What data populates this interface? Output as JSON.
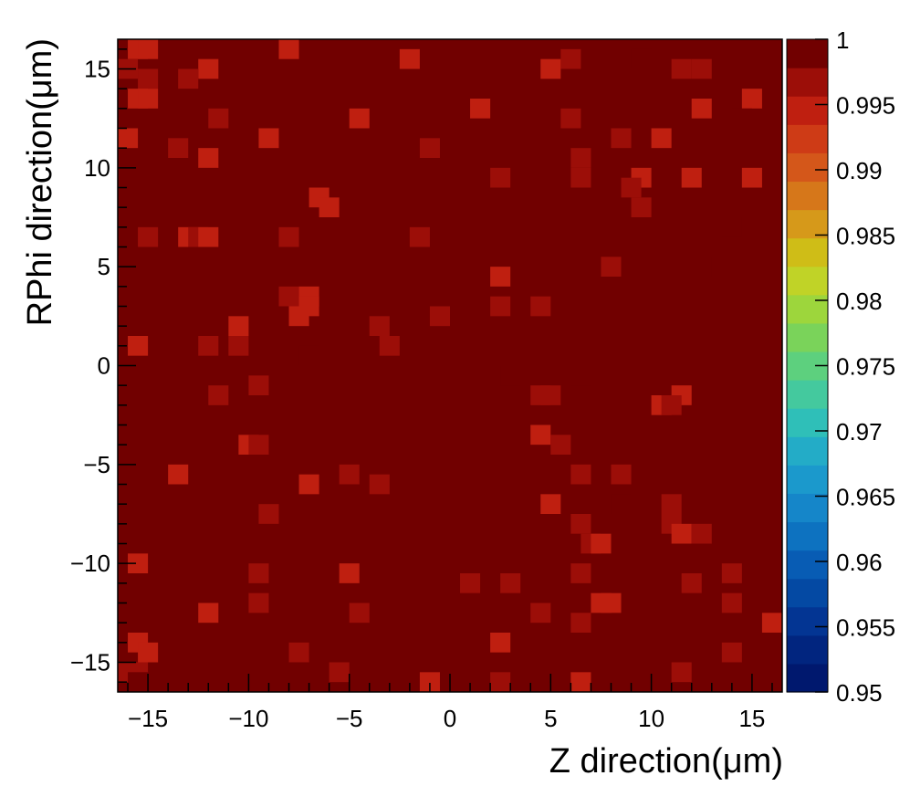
{
  "chart_data": {
    "type": "heatmap",
    "title": "",
    "xlabel": "Z direction(μm)",
    "ylabel": "RPhi direction(μm)",
    "xlim": [
      -16.5,
      16.5
    ],
    "ylim": [
      -16.5,
      16.5
    ],
    "x_ticks": [
      -15,
      -10,
      -5,
      0,
      5,
      10,
      15
    ],
    "x_tick_labels": [
      "−15",
      "−10",
      "−5",
      "0",
      "5",
      "10",
      "15"
    ],
    "y_ticks": [
      -15,
      -10,
      -5,
      0,
      5,
      10,
      15
    ],
    "y_tick_labels": [
      "−15",
      "−10",
      "−5",
      "0",
      "5",
      "10",
      "15"
    ],
    "colorbar": {
      "range": [
        0.95,
        1
      ],
      "ticks": [
        0.95,
        0.955,
        0.96,
        0.965,
        0.97,
        0.975,
        0.98,
        0.985,
        0.99,
        0.995,
        1
      ],
      "tick_labels": [
        "0.95",
        "0.955",
        "0.96",
        "0.965",
        "0.97",
        "0.975",
        "0.98",
        "0.985",
        "0.99",
        "0.995",
        "1"
      ],
      "palette": [
        "#00186e",
        "#01257f",
        "#033593",
        "#0449a3",
        "#085cb4",
        "#0d72c0",
        "#1586c9",
        "#1b99cc",
        "#23acc7",
        "#2fbfb8",
        "#44c99e",
        "#5dd07e",
        "#7ad35a",
        "#9dd63c",
        "#c0d327",
        "#cfbd17",
        "#d6991a",
        "#d6771a",
        "#d4571a",
        "#ce3b16",
        "#bf1f10",
        "#9c0e08",
        "#710000"
      ]
    },
    "grid": false,
    "bins": {
      "nx": 33,
      "ny": 33,
      "bin_width": 1
    },
    "default_value": 1,
    "cells": [
      {
        "x": -15.5,
        "y": 16,
        "v": 0.9945
      },
      {
        "x": -15,
        "y": 16,
        "v": 0.9945
      },
      {
        "x": -8,
        "y": 16,
        "v": 0.9945
      },
      {
        "x": -2,
        "y": 15.5,
        "v": 0.9945
      },
      {
        "x": 6,
        "y": 15.5,
        "v": 0.9965
      },
      {
        "x": 9.5,
        "y": 15.5,
        "v": 0.998
      },
      {
        "x": -16,
        "y": 15,
        "v": 0.9965
      },
      {
        "x": -12,
        "y": 15,
        "v": 0.9945
      },
      {
        "x": 5,
        "y": 15,
        "v": 0.9945
      },
      {
        "x": 11.5,
        "y": 15,
        "v": 0.997
      },
      {
        "x": 12.5,
        "y": 15,
        "v": 0.997
      },
      {
        "x": -15,
        "y": 14.5,
        "v": 0.9965
      },
      {
        "x": -13,
        "y": 14.5,
        "v": 0.9965
      },
      {
        "x": -15.5,
        "y": 13.5,
        "v": 0.9945
      },
      {
        "x": -15,
        "y": 13.5,
        "v": 0.9945
      },
      {
        "x": 15,
        "y": 13.5,
        "v": 0.9945
      },
      {
        "x": 1.5,
        "y": 13,
        "v": 0.9945
      },
      {
        "x": 12.5,
        "y": 13,
        "v": 0.9945
      },
      {
        "x": -11.5,
        "y": 12.5,
        "v": 0.997
      },
      {
        "x": -4.5,
        "y": 12.5,
        "v": 0.9945
      },
      {
        "x": 6,
        "y": 12.5,
        "v": 0.997
      },
      {
        "x": 14.5,
        "y": 12.5,
        "v": 0.998
      },
      {
        "x": -16,
        "y": 11.5,
        "v": 0.9945
      },
      {
        "x": -9,
        "y": 11.5,
        "v": 0.9945
      },
      {
        "x": 8.5,
        "y": 11.5,
        "v": 0.997
      },
      {
        "x": 10.5,
        "y": 11.5,
        "v": 0.9945
      },
      {
        "x": -13.5,
        "y": 11,
        "v": 0.997
      },
      {
        "x": -1,
        "y": 11,
        "v": 0.997
      },
      {
        "x": -12,
        "y": 10.5,
        "v": 0.9945
      },
      {
        "x": 6.5,
        "y": 10.5,
        "v": 0.997
      },
      {
        "x": 2.5,
        "y": 9.5,
        "v": 0.997
      },
      {
        "x": 6.5,
        "y": 9.5,
        "v": 0.997
      },
      {
        "x": 9.5,
        "y": 9.5,
        "v": 0.9945
      },
      {
        "x": 12,
        "y": 9.5,
        "v": 0.9945
      },
      {
        "x": 15,
        "y": 9.5,
        "v": 0.9945
      },
      {
        "x": 9,
        "y": 9,
        "v": 0.997
      },
      {
        "x": -6.5,
        "y": 8.5,
        "v": 0.9945
      },
      {
        "x": -6,
        "y": 8,
        "v": 0.9945
      },
      {
        "x": 9.5,
        "y": 8,
        "v": 0.997
      },
      {
        "x": 14,
        "y": 7,
        "v": 0.998
      },
      {
        "x": -15,
        "y": 6.5,
        "v": 0.9965
      },
      {
        "x": -13,
        "y": 6.5,
        "v": 0.9945
      },
      {
        "x": -12.5,
        "y": 6.5,
        "v": 0.9965
      },
      {
        "x": -12,
        "y": 6.5,
        "v": 0.9945
      },
      {
        "x": -8,
        "y": 6.5,
        "v": 0.997
      },
      {
        "x": -1.5,
        "y": 6.5,
        "v": 0.997
      },
      {
        "x": 8,
        "y": 5,
        "v": 0.997
      },
      {
        "x": 12.5,
        "y": 5,
        "v": 0.998
      },
      {
        "x": 2.5,
        "y": 4.5,
        "v": 0.9945
      },
      {
        "x": -8,
        "y": 3.5,
        "v": 0.997
      },
      {
        "x": -7,
        "y": 3.5,
        "v": 0.9945
      },
      {
        "x": -7,
        "y": 3,
        "v": 0.9945
      },
      {
        "x": 2.5,
        "y": 3,
        "v": 0.997
      },
      {
        "x": 4.5,
        "y": 3,
        "v": 0.997
      },
      {
        "x": -7.5,
        "y": 2.5,
        "v": 0.9945
      },
      {
        "x": -0.5,
        "y": 2.5,
        "v": 0.9965
      },
      {
        "x": -10.5,
        "y": 2,
        "v": 0.9945
      },
      {
        "x": -3.5,
        "y": 2,
        "v": 0.997
      },
      {
        "x": -15.5,
        "y": 1,
        "v": 0.9945
      },
      {
        "x": -12,
        "y": 1,
        "v": 0.997
      },
      {
        "x": -10.5,
        "y": 1,
        "v": 0.997
      },
      {
        "x": -3,
        "y": 1,
        "v": 0.9965
      },
      {
        "x": -7,
        "y": 0.5,
        "v": 0.998
      },
      {
        "x": 3,
        "y": -0.5,
        "v": 0.998
      },
      {
        "x": 6.5,
        "y": -0.5,
        "v": 0.998
      },
      {
        "x": -9.5,
        "y": -1,
        "v": 0.997
      },
      {
        "x": -11.5,
        "y": -1.5,
        "v": 0.997
      },
      {
        "x": 4.5,
        "y": -1.5,
        "v": 0.9965
      },
      {
        "x": 5,
        "y": -1.5,
        "v": 0.9965
      },
      {
        "x": 11.5,
        "y": -1.5,
        "v": 0.9945
      },
      {
        "x": 10.5,
        "y": -2,
        "v": 0.9945
      },
      {
        "x": 11,
        "y": -2,
        "v": 0.9965
      },
      {
        "x": 16,
        "y": -3.5,
        "v": 0.998
      },
      {
        "x": 4.5,
        "y": -3.5,
        "v": 0.9945
      },
      {
        "x": -10,
        "y": -4,
        "v": 0.9945
      },
      {
        "x": -9.5,
        "y": -4,
        "v": 0.997
      },
      {
        "x": 5.5,
        "y": -4,
        "v": 0.997
      },
      {
        "x": -13.5,
        "y": -5.5,
        "v": 0.9945
      },
      {
        "x": -5,
        "y": -5.5,
        "v": 0.9965
      },
      {
        "x": 6.5,
        "y": -5.5,
        "v": 0.997
      },
      {
        "x": 8.5,
        "y": -5.5,
        "v": 0.997
      },
      {
        "x": -7,
        "y": -6,
        "v": 0.9945
      },
      {
        "x": -3.5,
        "y": -6,
        "v": 0.997
      },
      {
        "x": 5,
        "y": -7,
        "v": 0.9945
      },
      {
        "x": 8.5,
        "y": -7,
        "v": 0.998
      },
      {
        "x": 11,
        "y": -7,
        "v": 0.997
      },
      {
        "x": -9,
        "y": -7.5,
        "v": 0.997
      },
      {
        "x": 6.5,
        "y": -8,
        "v": 0.997
      },
      {
        "x": 11,
        "y": -8,
        "v": 0.997
      },
      {
        "x": 11.5,
        "y": -8.5,
        "v": 0.9945
      },
      {
        "x": 12.5,
        "y": -8.5,
        "v": 0.997
      },
      {
        "x": 7,
        "y": -9,
        "v": 0.997
      },
      {
        "x": 7.5,
        "y": -9,
        "v": 0.9945
      },
      {
        "x": -15.5,
        "y": -10,
        "v": 0.9945
      },
      {
        "x": -9.5,
        "y": -10.5,
        "v": 0.997
      },
      {
        "x": -5,
        "y": -10.5,
        "v": 0.9945
      },
      {
        "x": 6.5,
        "y": -10.5,
        "v": 0.997
      },
      {
        "x": 14,
        "y": -10.5,
        "v": 0.997
      },
      {
        "x": 1,
        "y": -11,
        "v": 0.997
      },
      {
        "x": 3,
        "y": -11,
        "v": 0.997
      },
      {
        "x": 12,
        "y": -11,
        "v": 0.997
      },
      {
        "x": -9.5,
        "y": -12,
        "v": 0.997
      },
      {
        "x": 7.5,
        "y": -12,
        "v": 0.9945
      },
      {
        "x": 8,
        "y": -12,
        "v": 0.9945
      },
      {
        "x": 14,
        "y": -12,
        "v": 0.997
      },
      {
        "x": -12,
        "y": -12.5,
        "v": 0.9945
      },
      {
        "x": -4.5,
        "y": -12.5,
        "v": 0.997
      },
      {
        "x": 4.5,
        "y": -12.5,
        "v": 0.997
      },
      {
        "x": 6.5,
        "y": -13,
        "v": 0.9965
      },
      {
        "x": 16,
        "y": -13,
        "v": 0.9945
      },
      {
        "x": -15.5,
        "y": -14,
        "v": 0.9945
      },
      {
        "x": 2.5,
        "y": -14,
        "v": 0.9945
      },
      {
        "x": -15,
        "y": -14.5,
        "v": 0.9945
      },
      {
        "x": -7.5,
        "y": -14.5,
        "v": 0.9965
      },
      {
        "x": 14,
        "y": -14.5,
        "v": 0.9965
      },
      {
        "x": -16,
        "y": -15.5,
        "v": 0.9965
      },
      {
        "x": -15.5,
        "y": -15.5,
        "v": 0.9965
      },
      {
        "x": -5.5,
        "y": -15.5,
        "v": 0.9965
      },
      {
        "x": 11.5,
        "y": -15.5,
        "v": 0.9965
      },
      {
        "x": -15.5,
        "y": -16,
        "v": 0.998
      },
      {
        "x": -1,
        "y": -16,
        "v": 0.9945
      },
      {
        "x": 2.5,
        "y": -16,
        "v": 0.9965
      },
      {
        "x": 6.5,
        "y": -16,
        "v": 0.9945
      }
    ]
  }
}
